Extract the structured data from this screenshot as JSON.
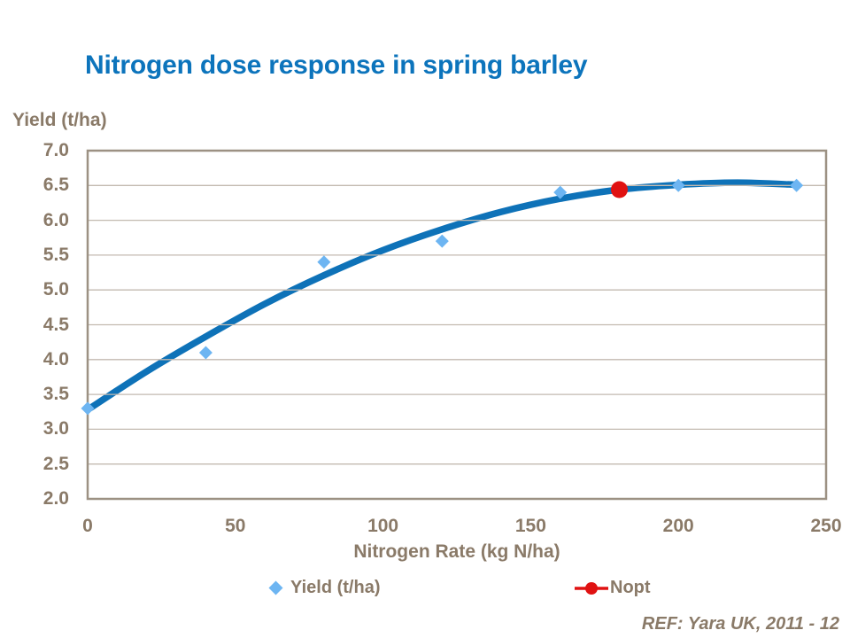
{
  "title": "Nitrogen dose response in spring barley",
  "reference": "REF: Yara UK, 2011 - 12",
  "colors": {
    "title_blue": "#0c74bc",
    "curve_blue": "#0e72b8",
    "marker_blue": "#6db5f2",
    "nopt_red": "#e01212",
    "axis_text_brown": "#8a7a68",
    "frame": "#9c9183",
    "gridline": "#c3bab0"
  },
  "legend": {
    "items": [
      {
        "label": "Yield (t/ha)",
        "marker": "diamond-icon"
      },
      {
        "label": "Nopt",
        "marker": "line-circle-icon"
      }
    ]
  },
  "chart_data": {
    "type": "scatter",
    "title": "Nitrogen dose response in spring barley",
    "xlabel": "Nitrogen Rate (kg N/ha)",
    "ylabel": "Yield (t/ha)",
    "xlim": [
      0,
      250
    ],
    "ylim": [
      2.0,
      7.0
    ],
    "x_ticks": [
      "0",
      "50",
      "100",
      "150",
      "200",
      "250"
    ],
    "y_ticks": [
      "7.0",
      "6.5",
      "6.0",
      "5.5",
      "5.0",
      "4.5",
      "4.0",
      "3.5",
      "3.0",
      "2.5",
      "2.0"
    ],
    "grid": "horizontal-only",
    "legend_position": "bottom",
    "series": [
      {
        "name": "Yield (t/ha)",
        "type": "scatter",
        "marker": "diamond",
        "color": "#6db5f2",
        "points": [
          [
            0,
            3.3
          ],
          [
            40,
            4.1
          ],
          [
            80,
            5.4
          ],
          [
            120,
            5.7
          ],
          [
            160,
            6.4
          ],
          [
            200,
            6.5
          ],
          [
            240,
            6.5
          ]
        ]
      },
      {
        "name": "Fitted response curve",
        "type": "line",
        "color": "#0e72b8",
        "points": [
          [
            0,
            3.28
          ],
          [
            20,
            3.83
          ],
          [
            40,
            4.33
          ],
          [
            60,
            4.8
          ],
          [
            80,
            5.21
          ],
          [
            100,
            5.57
          ],
          [
            120,
            5.87
          ],
          [
            140,
            6.12
          ],
          [
            160,
            6.31
          ],
          [
            180,
            6.44
          ],
          [
            200,
            6.51
          ],
          [
            220,
            6.54
          ],
          [
            240,
            6.51
          ]
        ]
      },
      {
        "name": "Nopt",
        "type": "scatter",
        "marker": "circle",
        "color": "#e01212",
        "points": [
          [
            180,
            6.44
          ]
        ]
      }
    ]
  }
}
